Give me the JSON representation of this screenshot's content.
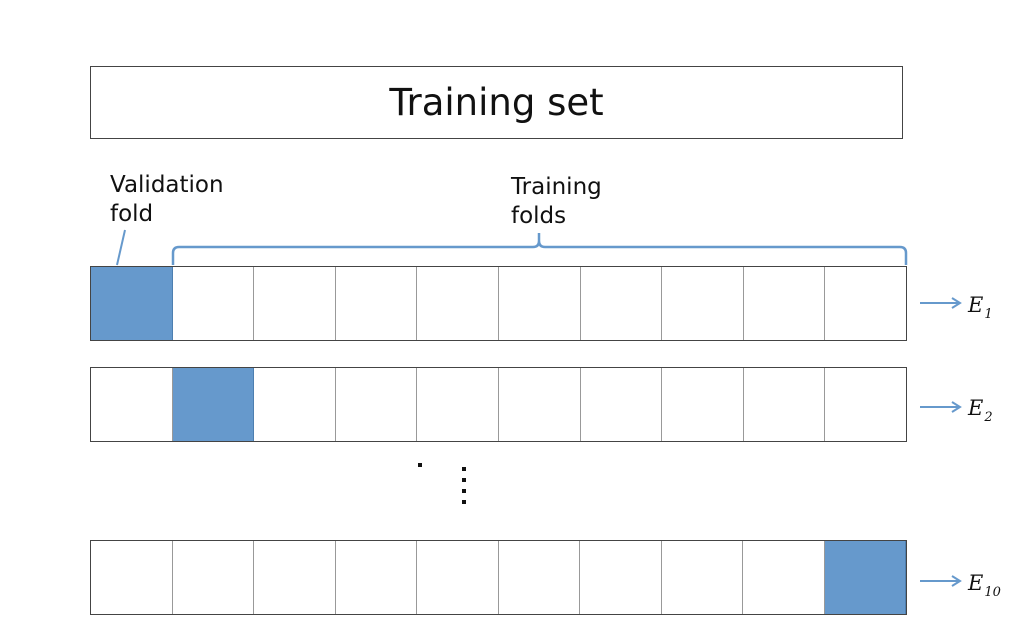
{
  "title": "Training set",
  "validation_label": [
    "Validation",
    "fold"
  ],
  "training_label": [
    "Training",
    "folds"
  ],
  "num_folds": 10,
  "rows": [
    {
      "validation_index": 0,
      "error_symbol": "E",
      "error_sub": "1"
    },
    {
      "validation_index": 1,
      "error_symbol": "E",
      "error_sub": "2"
    },
    {
      "validation_index": 9,
      "error_symbol": "E",
      "error_sub": "10"
    }
  ],
  "colors": {
    "validation_fill": "#6699cc",
    "bracket": "#6699cc",
    "arrow": "#6699cc",
    "border": "#444444"
  }
}
